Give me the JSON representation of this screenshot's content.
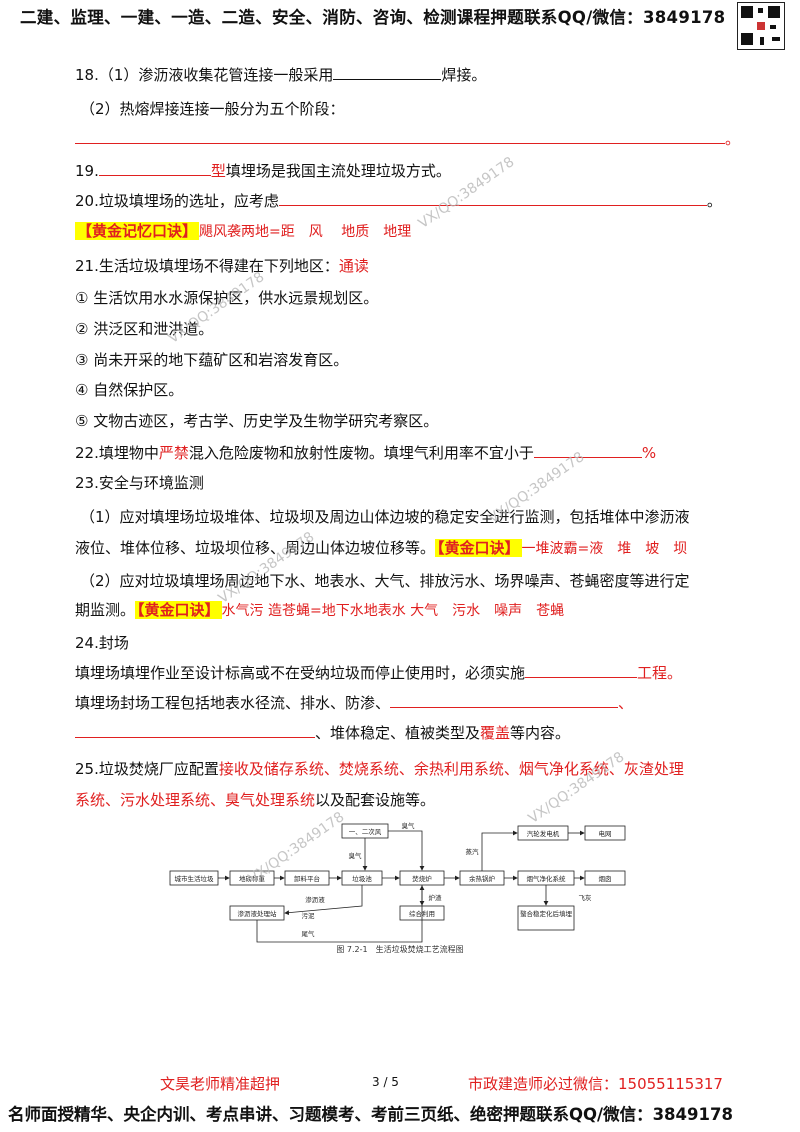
{
  "header": {
    "text": "二建、监理、一建、一造、二造、安全、消防、咨询、检测课程押题联系QQ/微信：3849178"
  },
  "q18": {
    "line1a": "18.（1）渗沥液收集花管连接一般采用",
    "line1b": "焊接。",
    "line2": "（2）热熔焊接连接一般分为五个阶段："
  },
  "q19": {
    "num": "19.",
    "red": "型",
    "text": "填埋场是我国主流处理垃圾方式。"
  },
  "q20": {
    "text": "20.垃圾填埋场的选址，应考虑",
    "end": "。",
    "tag": "【黄金记忆口诀】",
    "mnemonic": "飓风袭两地=距　风　 地质　地理"
  },
  "q21": {
    "text": "21.生活垃圾填埋场不得建在下列地区：",
    "red": "通读",
    "items": [
      "① 生活饮用水水源保护区，供水远景规划区。",
      "② 洪泛区和泄洪道。",
      "③ 尚未开采的地下蕴矿区和岩溶发育区。",
      "④ 自然保护区。",
      "⑤ 文物古迹区，考古学、历史学及生物学研究考察区。"
    ]
  },
  "q22": {
    "a": "22.填埋物中",
    "red": "严禁",
    "b": "混入危险废物和放射性废物。填埋气利用率不宜小于",
    "pct": "%"
  },
  "q23": {
    "title": "23.安全与环境监测",
    "p1a": "（1）应对填埋场垃圾堆体、垃圾坝及周边山体边坡的稳定安全进行监测，包括堆体中渗沥液",
    "p1b": "液位、堆体位移、垃圾坝位移、周边山体边坡位移等。",
    "tag1": "【黄金口诀】",
    "m1": "一堆波霸=液　堆　坡　坝",
    "p2a": "（2）应对垃圾填埋场周边地下水、地表水、大气、排放污水、场界噪声、苍蝇密度等进行定",
    "p2b": "期监测。",
    "tag2": "【黄金口诀】",
    "m2": "水气污 造苍蝇=地下水地表水 大气　污水　噪声　苍蝇"
  },
  "q24": {
    "title": "24.封场",
    "l1a": "填埋场填埋作业至设计标高或不在受纳垃圾而停止使用时，必须实施",
    "l1red": "工程。",
    "l2": "填埋场封场工程包括地表水径流、排水、防渗、",
    "l2end": "、",
    "l3a": "、堆体稳定、植被类型及",
    "l3red": "覆盖",
    "l3b": "等内容。"
  },
  "q25": {
    "a": "25.垃圾焚烧厂应配置",
    "red1": "接收及储存系统、焚烧系统、余热利用系统、烟气净化系统、灰渣处理",
    "red2": "系统、污水处理系统、臭气处理系统",
    "b": "以及配套设施等。"
  },
  "figure": {
    "caption": "图 7.2-1　生活垃圾焚烧工艺流程图",
    "boxes": [
      "城市生活垃圾",
      "地磅称重",
      "卸料平台",
      "垃圾池",
      "焚烧炉",
      "余热锅炉",
      "烟气净化系统",
      "烟囱",
      "一、二次风",
      "汽轮发电机",
      "电网",
      "渗沥液处理站",
      "综合利用",
      "螯合稳定化后填埋"
    ],
    "labels": [
      "臭气",
      "臭气",
      "蒸汽",
      "渗沥液",
      "污泥",
      "炉渣",
      "飞灰",
      "尾气"
    ]
  },
  "watermark": "VX/QQ:3849178",
  "footer": {
    "left": "文昊老师精准超押",
    "page": "3 / 5",
    "right": "市政建造师必过微信：15055115317",
    "bottom": "名师面授精华、央企内训、考点串讲、习题模考、考前三页纸、绝密押题联系QQ/微信：3849178"
  }
}
